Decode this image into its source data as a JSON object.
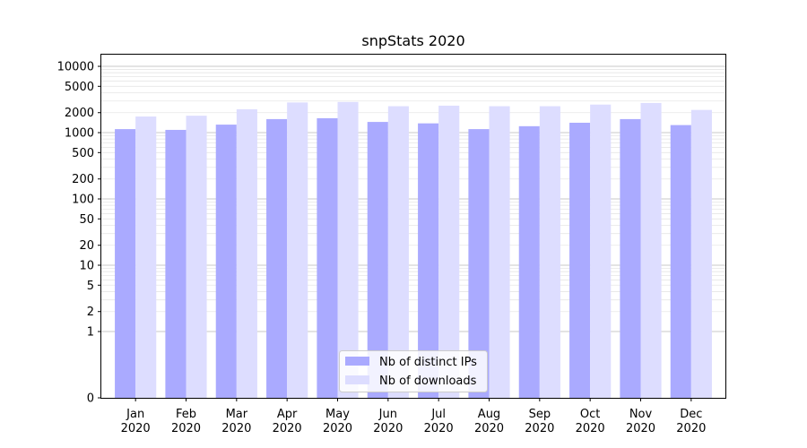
{
  "chart_data": {
    "type": "bar",
    "title": "snpStats 2020",
    "xlabel": "",
    "ylabel": "",
    "y_scale": "symlog",
    "ylim": [
      0,
      15000
    ],
    "grid": "y major and minor",
    "legend_position": "bottom-center",
    "categories": [
      [
        "Jan",
        "2020"
      ],
      [
        "Feb",
        "2020"
      ],
      [
        "Mar",
        "2020"
      ],
      [
        "Apr",
        "2020"
      ],
      [
        "May",
        "2020"
      ],
      [
        "Jun",
        "2020"
      ],
      [
        "Jul",
        "2020"
      ],
      [
        "Aug",
        "2020"
      ],
      [
        "Sep",
        "2020"
      ],
      [
        "Oct",
        "2020"
      ],
      [
        "Nov",
        "2020"
      ],
      [
        "Dec",
        "2020"
      ]
    ],
    "y_ticks": [
      "0",
      "1",
      "2",
      "5",
      "10",
      "20",
      "50",
      "100",
      "200",
      "500",
      "1000",
      "2000",
      "5000",
      "10000"
    ],
    "series": [
      {
        "name": "Nb of distinct IPs",
        "color": "#aaaaff",
        "values": [
          1130,
          1100,
          1320,
          1600,
          1650,
          1450,
          1380,
          1130,
          1250,
          1410,
          1600,
          1300
        ]
      },
      {
        "name": "Nb of downloads",
        "color": "#ddddff",
        "values": [
          1750,
          1800,
          2250,
          2850,
          2900,
          2500,
          2550,
          2500,
          2500,
          2650,
          2800,
          2200
        ]
      }
    ]
  }
}
